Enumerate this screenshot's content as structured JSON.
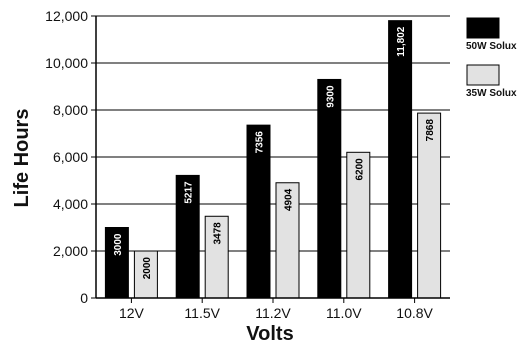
{
  "chart_data": {
    "type": "bar",
    "title": "",
    "xlabel": "Volts",
    "ylabel": "Life Hours",
    "categories": [
      "12V",
      "11.5V",
      "11.2V",
      "11.0V",
      "10.8V"
    ],
    "series": [
      {
        "name": "50W Solux",
        "color": "#000000",
        "text_color": "#ffffff",
        "values": [
          3000,
          5217,
          7356,
          9300,
          11802
        ],
        "labels": [
          "3000",
          "5217",
          "7356",
          "9300",
          "11,802"
        ]
      },
      {
        "name": "35W Solux",
        "color": "#e2e2e2",
        "text_color": "#000000",
        "values": [
          2000,
          3478,
          4904,
          6200,
          7868
        ],
        "labels": [
          "2000",
          "3478",
          "4904",
          "6200",
          "7868"
        ]
      }
    ],
    "ylim": [
      0,
      12000
    ],
    "yticks": [
      0,
      2000,
      4000,
      6000,
      8000,
      10000,
      12000
    ],
    "ytick_labels": [
      "0",
      "2,000",
      "4,000",
      "6,000",
      "8,000",
      "10,000",
      "12,000"
    ],
    "grid": true,
    "legend_position": "right"
  }
}
